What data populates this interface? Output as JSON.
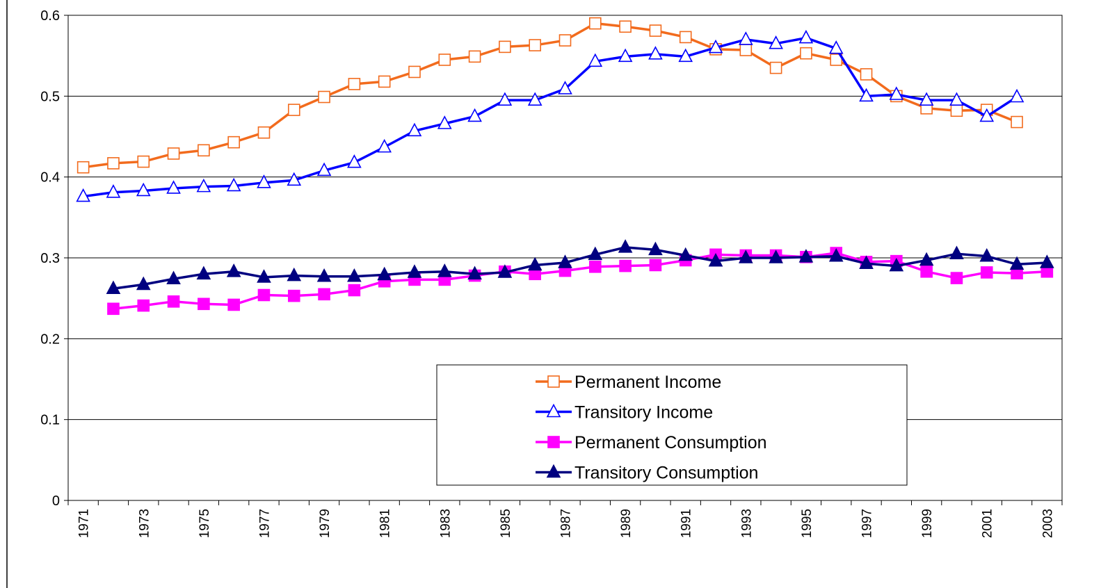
{
  "chart_data": {
    "type": "line",
    "categories": [
      "1971",
      null,
      "1973",
      null,
      "1975",
      null,
      "1977",
      null,
      "1979",
      null,
      "1981",
      null,
      "1983",
      null,
      "1985",
      null,
      "1987",
      null,
      "1989",
      null,
      "1991",
      null,
      "1993",
      null,
      "1995",
      null,
      "1997",
      null,
      "1999",
      null,
      "2001",
      null,
      "2003"
    ],
    "series": [
      {
        "name": "Permanent Income",
        "color": "#f26b1d",
        "marker": "square",
        "filled": false,
        "values": [
          0.412,
          0.417,
          0.419,
          0.429,
          0.433,
          0.443,
          0.455,
          0.483,
          0.499,
          0.515,
          0.518,
          0.53,
          0.545,
          0.549,
          0.561,
          0.563,
          0.569,
          0.59,
          0.586,
          0.581,
          0.573,
          0.558,
          0.557,
          0.535,
          0.553,
          0.545,
          0.527,
          0.5,
          0.485,
          0.482,
          0.483,
          0.468,
          null
        ]
      },
      {
        "name": "Transitory Income",
        "color": "#0000ff",
        "marker": "triangle",
        "filled": false,
        "values": [
          0.376,
          0.381,
          0.383,
          0.386,
          0.388,
          0.389,
          0.393,
          0.396,
          0.408,
          0.418,
          0.437,
          0.457,
          0.466,
          0.475,
          0.495,
          0.495,
          0.509,
          0.543,
          0.549,
          0.552,
          0.549,
          0.56,
          0.57,
          0.565,
          0.572,
          0.559,
          0.5,
          0.502,
          0.495,
          0.495,
          0.475,
          0.499,
          null
        ]
      },
      {
        "name": "Permanent Consumption",
        "color": "#ff00ff",
        "marker": "square",
        "filled": true,
        "values": [
          null,
          0.237,
          0.241,
          0.246,
          0.243,
          0.242,
          0.254,
          0.253,
          0.255,
          0.26,
          0.271,
          0.273,
          0.273,
          0.278,
          0.283,
          0.28,
          0.284,
          0.289,
          0.29,
          0.291,
          0.297,
          0.304,
          0.303,
          0.303,
          0.301,
          0.306,
          0.295,
          0.296,
          0.283,
          0.275,
          0.282,
          0.281,
          0.283
        ]
      },
      {
        "name": "Transitory Consumption",
        "color": "#000080",
        "marker": "triangle",
        "filled": true,
        "values": [
          null,
          0.262,
          0.267,
          0.274,
          0.28,
          0.283,
          0.276,
          0.278,
          0.277,
          0.277,
          0.279,
          0.282,
          0.283,
          0.28,
          0.282,
          0.291,
          0.294,
          0.304,
          0.313,
          0.31,
          0.303,
          0.296,
          0.3,
          0.3,
          0.301,
          0.302,
          0.293,
          0.29,
          0.297,
          0.305,
          0.302,
          0.292,
          0.294
        ]
      }
    ],
    "ylim": [
      0,
      0.6
    ],
    "yticks": [
      0,
      0.1,
      0.2,
      0.3,
      0.4,
      0.5,
      0.6
    ],
    "grid": true
  }
}
